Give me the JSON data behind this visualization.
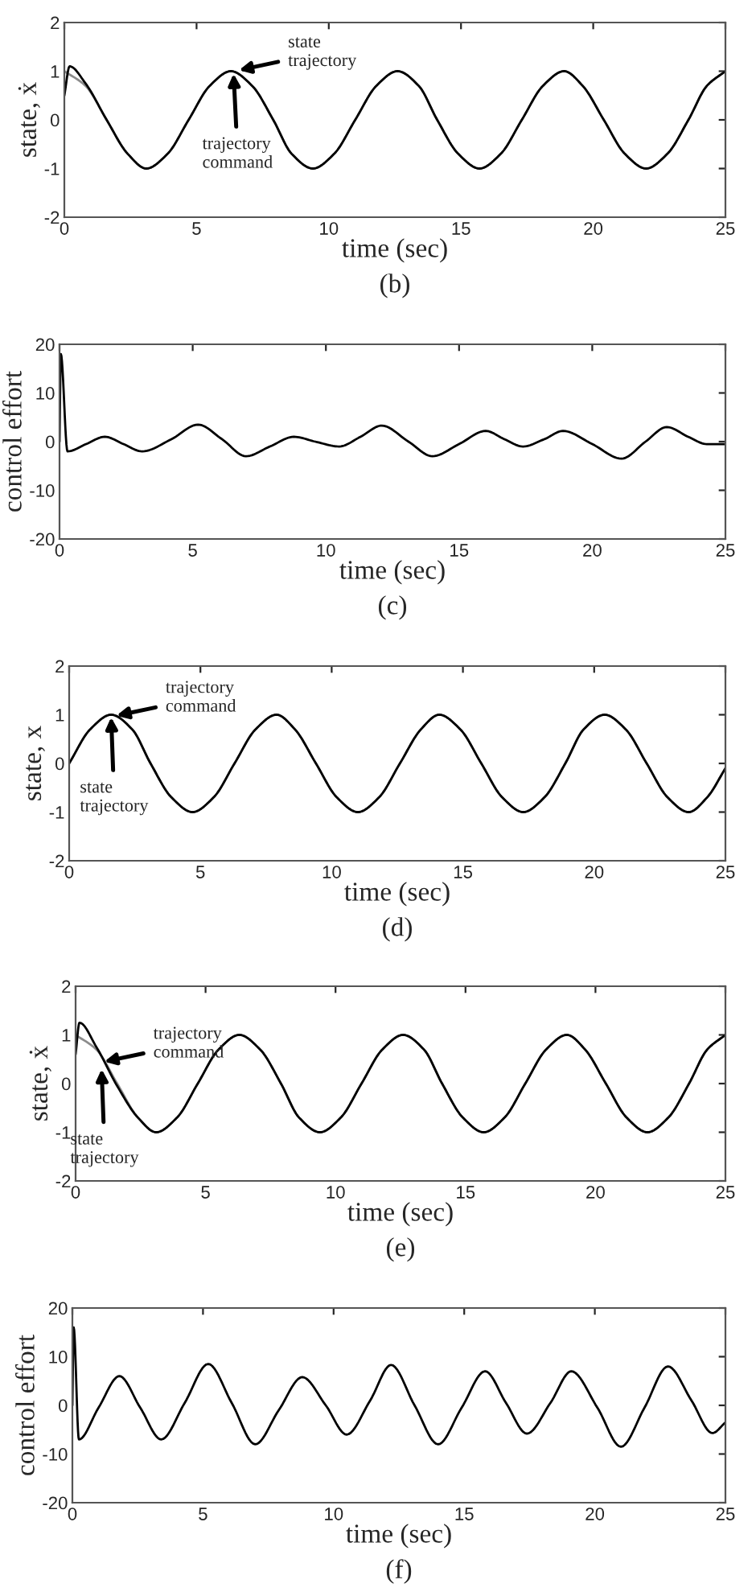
{
  "chart_data": [
    {
      "type": "line",
      "ylabel": "state, ẋ",
      "xlabel": "time (sec)",
      "xlim": [
        0,
        25
      ],
      "xticks": [
        0,
        5,
        10,
        15,
        20,
        25
      ],
      "ylim": [
        -2,
        2
      ],
      "yticks": [
        -2,
        -1,
        0,
        1,
        2
      ],
      "grid": false,
      "marker": "none",
      "line_style": "solid",
      "series": [
        {
          "color": "#8c8c8c",
          "x": [
            0,
            0.8,
            1.6,
            2.4,
            3.1,
            3.9,
            4.7,
            5.5,
            6.3,
            7.1,
            7.9,
            8.6,
            9.4,
            10.2,
            11.0,
            11.8,
            12.6,
            13.4,
            14.1,
            14.9,
            15.7,
            16.5,
            17.3,
            18.1,
            18.9,
            19.6,
            20.4,
            21.2,
            22.0,
            22.8,
            23.6,
            24.3,
            25.0
          ],
          "values": [
            1,
            0.7,
            0,
            -0.7,
            -1,
            -0.7,
            0,
            0.7,
            1,
            0.7,
            0,
            -0.7,
            -1,
            -0.7,
            0,
            0.7,
            1,
            0.7,
            0,
            -0.7,
            -1,
            -0.7,
            0,
            0.7,
            1,
            0.7,
            0,
            -0.7,
            -1,
            -0.7,
            0,
            0.7,
            1
          ]
        },
        {
          "color": "#000000",
          "x": [
            0,
            0.2,
            0.8,
            1.6,
            2.4,
            3.1,
            3.9,
            4.7,
            5.5,
            6.3,
            7.1,
            7.9,
            8.6,
            9.4,
            10.2,
            11.0,
            11.8,
            12.6,
            13.4,
            14.1,
            14.9,
            15.7,
            16.5,
            17.3,
            18.1,
            18.9,
            19.6,
            20.4,
            21.2,
            22.0,
            22.8,
            23.6,
            24.3,
            25.0
          ],
          "values": [
            0.5,
            1.1,
            0.75,
            0,
            -0.7,
            -1,
            -0.7,
            0,
            0.7,
            1,
            0.7,
            0,
            -0.7,
            -1,
            -0.7,
            0,
            0.7,
            1,
            0.7,
            0,
            -0.7,
            -1,
            -0.7,
            0,
            0.7,
            1,
            0.7,
            0,
            -0.7,
            -1,
            -0.7,
            0,
            0.7,
            1
          ]
        }
      ],
      "annotations": [
        {
          "text": "state\ntrajectory",
          "x": 6.6,
          "y": 1.02
        },
        {
          "text": "trajectory\ncommand",
          "x": 6.4,
          "y": 0.95
        },
        "(b)"
      ]
    },
    {
      "type": "line",
      "ylabel": "control effort",
      "xlabel": "time (sec)",
      "xlim": [
        0,
        25
      ],
      "xticks": [
        0,
        5,
        10,
        15,
        20,
        25
      ],
      "ylim": [
        -20,
        20
      ],
      "yticks": [
        -20,
        -10,
        0,
        10,
        20
      ],
      "grid": false,
      "marker": "none",
      "line_style": "solid",
      "series": [
        {
          "color": "#000000",
          "x": [
            0,
            0.05,
            0.3,
            1.0,
            1.7,
            2.4,
            3.1,
            4.2,
            5.2,
            6.1,
            7.0,
            7.9,
            8.8,
            9.6,
            10.5,
            11.3,
            12.1,
            13.1,
            14.0,
            15.0,
            16.0,
            16.7,
            17.4,
            18.2,
            18.9,
            20.0,
            21.1,
            22.0,
            22.8,
            23.6,
            24.3,
            25.0
          ],
          "values": [
            0,
            18,
            -2,
            -0.5,
            1,
            -0.5,
            -2,
            0.5,
            3.5,
            0.5,
            -3,
            -1,
            1,
            0,
            -1,
            1,
            3.3,
            0,
            -3,
            -0.5,
            2.2,
            0.5,
            -1,
            0.5,
            2.2,
            -0.5,
            -3.5,
            0,
            3,
            1,
            -0.5,
            -0.5
          ]
        }
      ],
      "annotations": [
        "(c)"
      ]
    },
    {
      "type": "line",
      "ylabel": "state, x",
      "xlabel": "time (sec)",
      "xlim": [
        0,
        25
      ],
      "xticks": [
        0,
        5,
        10,
        15,
        20,
        25
      ],
      "ylim": [
        -2,
        2
      ],
      "yticks": [
        -2,
        -1,
        0,
        1,
        2
      ],
      "grid": false,
      "marker": "none",
      "line_style": "solid",
      "series": [
        {
          "color": "#8c8c8c",
          "x": [
            0,
            0.8,
            1.6,
            2.4,
            3.1,
            3.9,
            4.7,
            5.5,
            6.3,
            7.1,
            7.9,
            8.6,
            9.4,
            10.2,
            11.0,
            11.8,
            12.6,
            13.4,
            14.1,
            14.9,
            15.7,
            16.5,
            17.3,
            18.1,
            18.9,
            19.6,
            20.4,
            21.2,
            22.0,
            22.8,
            23.6,
            24.3,
            25.0
          ],
          "values": [
            0,
            0.7,
            1,
            0.7,
            0,
            -0.7,
            -1,
            -0.7,
            0,
            0.7,
            1,
            0.7,
            0,
            -0.7,
            -1,
            -0.7,
            0,
            0.7,
            1,
            0.7,
            0,
            -0.7,
            -1,
            -0.7,
            0,
            0.7,
            1,
            0.7,
            0,
            -0.7,
            -1,
            -0.7,
            -0.1
          ]
        },
        {
          "color": "#000000",
          "x": [
            0,
            0.8,
            1.6,
            2.4,
            3.1,
            3.9,
            4.7,
            5.5,
            6.3,
            7.1,
            7.9,
            8.6,
            9.4,
            10.2,
            11.0,
            11.8,
            12.6,
            13.4,
            14.1,
            14.9,
            15.7,
            16.5,
            17.3,
            18.1,
            18.9,
            19.6,
            20.4,
            21.2,
            22.0,
            22.8,
            23.6,
            24.3,
            25.0
          ],
          "values": [
            0,
            0.7,
            1,
            0.7,
            0,
            -0.7,
            -1,
            -0.7,
            0,
            0.7,
            1,
            0.7,
            0,
            -0.7,
            -1,
            -0.7,
            0,
            0.7,
            1,
            0.7,
            0,
            -0.7,
            -1,
            -0.7,
            0,
            0.7,
            1,
            0.7,
            0,
            -0.7,
            -1,
            -0.7,
            -0.1
          ]
        }
      ],
      "annotations": [
        {
          "text": "trajectory\ncommand",
          "x": 1.8,
          "y": 0.98
        },
        {
          "text": "state\ntrajectory",
          "x": 1.6,
          "y": 0.95
        },
        "(d)"
      ]
    },
    {
      "type": "line",
      "ylabel": "state, ẋ",
      "xlabel": "time (sec)",
      "xlim": [
        0,
        25
      ],
      "xticks": [
        0,
        5,
        10,
        15,
        20,
        25
      ],
      "ylim": [
        -2,
        2
      ],
      "yticks": [
        -2,
        -1,
        0,
        1,
        2
      ],
      "grid": false,
      "marker": "none",
      "line_style": "solid",
      "series": [
        {
          "color": "#8c8c8c",
          "x": [
            0,
            0.8,
            1.6,
            2.4,
            3.1,
            3.9,
            4.7,
            5.5,
            6.3,
            7.1,
            7.9,
            8.6,
            9.4,
            10.2,
            11.0,
            11.8,
            12.6,
            13.4,
            14.1,
            14.9,
            15.7,
            16.5,
            17.3,
            18.1,
            18.9,
            19.6,
            20.4,
            21.2,
            22.0,
            22.8,
            23.6,
            24.3,
            25.0
          ],
          "values": [
            1,
            0.7,
            0,
            -0.7,
            -1,
            -0.7,
            0,
            0.7,
            1,
            0.7,
            0,
            -0.7,
            -1,
            -0.7,
            0,
            0.7,
            1,
            0.7,
            0,
            -0.7,
            -1,
            -0.7,
            0,
            0.7,
            1,
            0.7,
            0,
            -0.7,
            -1,
            -0.7,
            0,
            0.7,
            1
          ]
        },
        {
          "color": "#000000",
          "x": [
            0,
            0.15,
            0.8,
            1.6,
            2.4,
            3.1,
            3.9,
            4.7,
            5.5,
            6.3,
            7.1,
            7.9,
            8.6,
            9.4,
            10.2,
            11.0,
            11.8,
            12.6,
            13.4,
            14.1,
            14.9,
            15.7,
            16.5,
            17.3,
            18.1,
            18.9,
            19.6,
            20.4,
            21.2,
            22.0,
            22.8,
            23.6,
            24.3,
            25.0
          ],
          "values": [
            0.6,
            1.25,
            0.75,
            -0.05,
            -0.7,
            -1,
            -0.7,
            0,
            0.7,
            1,
            0.7,
            0,
            -0.7,
            -1,
            -0.7,
            0,
            0.7,
            1,
            0.7,
            0,
            -0.7,
            -1,
            -0.7,
            0,
            0.7,
            1,
            0.7,
            0,
            -0.7,
            -1,
            -0.7,
            0,
            0.7,
            1
          ]
        }
      ],
      "annotations": [
        {
          "text": "trajectory\ncommand",
          "x": 1.1,
          "y": 0.45
        },
        {
          "text": "state\ntrajectory",
          "x": 1.0,
          "y": 0.3
        },
        "(e)"
      ]
    },
    {
      "type": "line",
      "ylabel": "control effort",
      "xlabel": "time (sec)",
      "xlim": [
        0,
        25
      ],
      "xticks": [
        0,
        5,
        10,
        15,
        20,
        25
      ],
      "ylim": [
        -20,
        20
      ],
      "yticks": [
        -20,
        -10,
        0,
        10,
        20
      ],
      "grid": false,
      "marker": "none",
      "line_style": "solid",
      "series": [
        {
          "color": "#000000",
          "x": [
            0,
            0.05,
            0.25,
            1.0,
            1.8,
            2.6,
            3.4,
            4.3,
            5.2,
            6.1,
            7.0,
            7.9,
            8.8,
            9.7,
            10.5,
            11.4,
            12.2,
            13.1,
            14.0,
            14.9,
            15.8,
            16.6,
            17.4,
            18.3,
            19.1,
            20.1,
            21.0,
            21.9,
            22.8,
            23.7,
            24.5,
            25.0
          ],
          "values": [
            0,
            16,
            -7,
            -0.5,
            6,
            -0.5,
            -7,
            0.5,
            8.5,
            0.5,
            -8,
            -1,
            5.8,
            0,
            -6,
            1,
            8.3,
            0,
            -8,
            -0.5,
            7,
            0.5,
            -5.8,
            0.5,
            7,
            -0.5,
            -8.5,
            -0.5,
            8,
            1,
            -5.7,
            -3.5
          ]
        }
      ],
      "annotations": [
        "(f)"
      ]
    }
  ]
}
